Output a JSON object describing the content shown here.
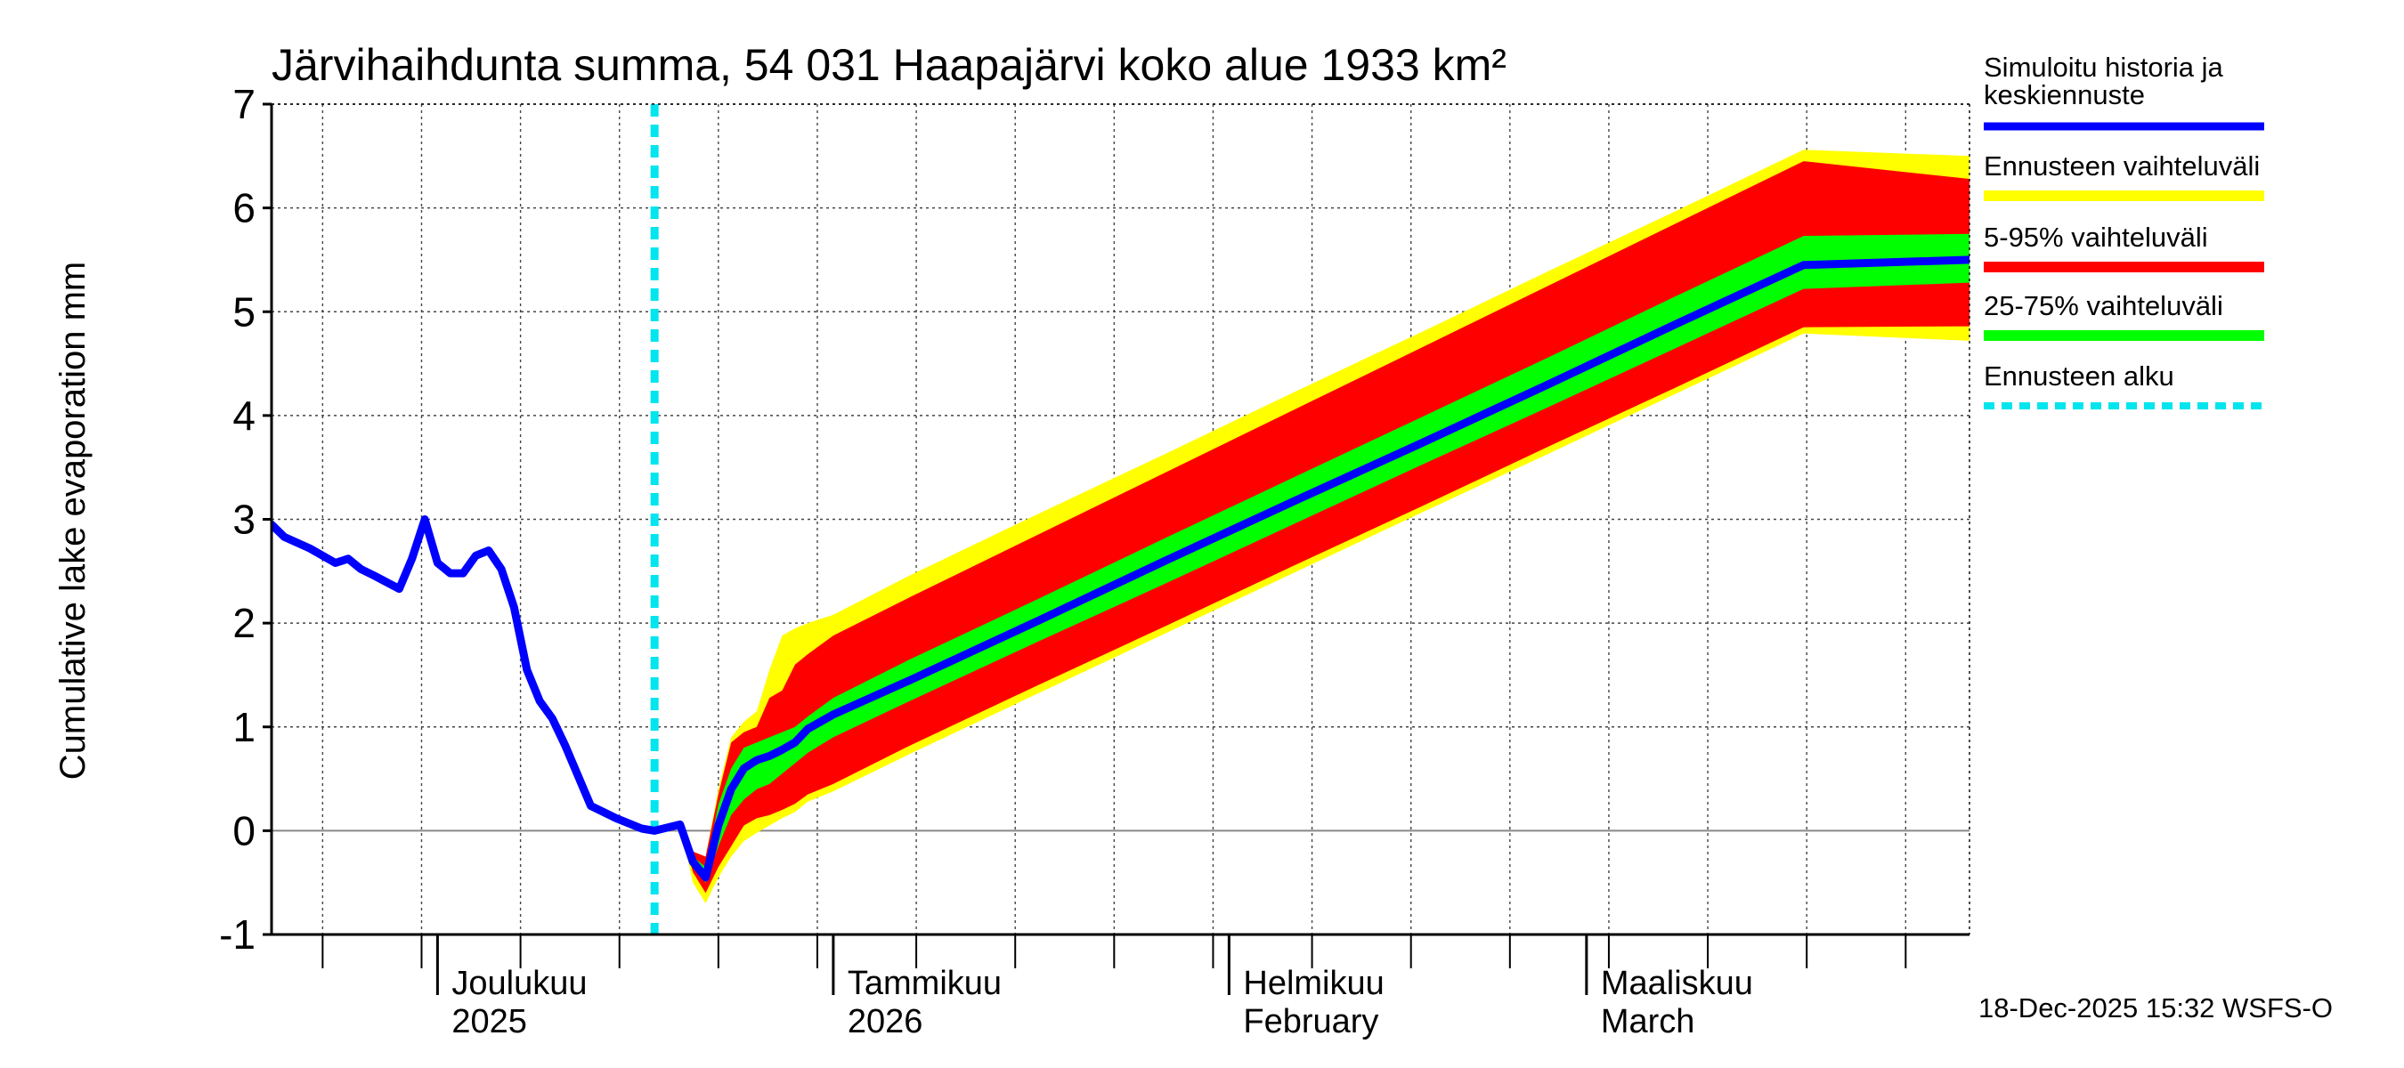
{
  "chart_data": {
    "type": "area",
    "title": "Järvihaihdunta summa, 54 031 Haapajärvi koko alue 1933 km²",
    "ylabel": "Cumulative lake evaporation   mm",
    "xlabel": "",
    "ylim": [
      -1,
      7
    ],
    "yticks": [
      "-1",
      "0",
      "1",
      "2",
      "3",
      "4",
      "5",
      "6",
      "7"
    ],
    "x_axis_unit": "days since 2025-11-18",
    "xlim": [
      0,
      133
    ],
    "month_ticks": [
      {
        "day": 13,
        "label1": "Joulukuu",
        "label2": "2025"
      },
      {
        "day": 44,
        "label1": "Tammikuu",
        "label2": "2026"
      },
      {
        "day": 75,
        "label1": "Helmikuu",
        "label2": "February"
      },
      {
        "day": 103,
        "label1": "Maaliskuu",
        "label2": "March"
      }
    ],
    "forecast_start_day": 30,
    "history": {
      "name": "Simuloitu historia ja keskiennuste",
      "color": "#0000ff",
      "x": [
        0,
        1,
        3,
        5,
        6,
        7,
        8,
        10,
        11,
        12,
        13,
        14,
        15,
        16,
        17,
        18,
        19,
        20,
        21,
        22,
        23,
        25,
        27,
        29,
        30
      ],
      "y": [
        2.95,
        2.83,
        2.72,
        2.58,
        2.62,
        2.52,
        2.46,
        2.33,
        2.62,
        3.0,
        2.58,
        2.48,
        2.48,
        2.65,
        2.7,
        2.52,
        2.15,
        1.55,
        1.25,
        1.08,
        0.82,
        0.24,
        0.12,
        0.02,
        0.0
      ]
    },
    "forecast_x": [
      30,
      31,
      32,
      33,
      34,
      35,
      36,
      37,
      38,
      39,
      40,
      41,
      42,
      44,
      50,
      60,
      70,
      80,
      90,
      100,
      110,
      120,
      133
    ],
    "median": [
      0.0,
      0.03,
      0.06,
      -0.3,
      -0.45,
      0.05,
      0.4,
      0.6,
      0.68,
      0.72,
      0.78,
      0.85,
      0.98,
      1.12,
      1.45,
      2.02,
      2.6,
      3.17,
      3.73,
      4.3,
      4.88,
      5.45,
      5.5
    ],
    "bands": [
      {
        "name": "Ennusteen vaihteluväli",
        "color": "#ffff00",
        "upper": [
          0.0,
          0.03,
          0.06,
          -0.2,
          -0.25,
          0.4,
          0.9,
          1.05,
          1.15,
          1.55,
          1.88,
          1.95,
          2.0,
          2.08,
          2.46,
          3.05,
          3.63,
          4.22,
          4.8,
          5.39,
          5.97,
          6.56,
          6.5
        ],
        "lower": [
          0.0,
          0.03,
          0.06,
          -0.5,
          -0.7,
          -0.45,
          -0.25,
          -0.1,
          -0.02,
          0.05,
          0.12,
          0.18,
          0.28,
          0.38,
          0.74,
          1.32,
          1.9,
          2.48,
          3.06,
          3.63,
          4.21,
          4.79,
          4.72
        ]
      },
      {
        "name": "5-95% vaihteluväli",
        "color": "#ff0000",
        "upper": [
          0.0,
          0.03,
          0.06,
          -0.2,
          -0.25,
          0.35,
          0.85,
          0.95,
          1.0,
          1.28,
          1.35,
          1.6,
          1.7,
          1.88,
          2.25,
          2.85,
          3.45,
          4.05,
          4.65,
          5.25,
          5.85,
          6.45,
          6.28
        ],
        "lower": [
          0.0,
          0.03,
          0.06,
          -0.4,
          -0.6,
          -0.35,
          -0.15,
          0.05,
          0.12,
          0.15,
          0.2,
          0.26,
          0.35,
          0.45,
          0.82,
          1.4,
          1.97,
          2.55,
          3.12,
          3.7,
          4.27,
          4.85,
          4.86
        ]
      },
      {
        "name": "25-75% vaihteluväli",
        "color": "#00ff00",
        "upper": [
          0.0,
          0.03,
          0.06,
          -0.25,
          -0.35,
          0.25,
          0.6,
          0.8,
          0.85,
          0.9,
          0.95,
          1.0,
          1.1,
          1.28,
          1.65,
          2.23,
          2.82,
          3.4,
          3.98,
          4.56,
          5.15,
          5.73,
          5.75
        ],
        "lower": [
          0.0,
          0.03,
          0.06,
          -0.35,
          -0.5,
          -0.15,
          0.15,
          0.3,
          0.4,
          0.45,
          0.55,
          0.65,
          0.75,
          0.9,
          1.25,
          1.82,
          2.38,
          2.95,
          3.52,
          4.08,
          4.65,
          5.22,
          5.28
        ]
      }
    ],
    "legend": [
      {
        "label": "Simuloitu historia ja keskiennuste",
        "color": "#0000ff",
        "style": "solid"
      },
      {
        "label": "Ennusteen vaihteluväli",
        "color": "#ffff00",
        "style": "solid"
      },
      {
        "label": "5-95% vaihteluväli",
        "color": "#ff0000",
        "style": "solid"
      },
      {
        "label": "25-75% vaihteluväli",
        "color": "#00ff00",
        "style": "solid"
      },
      {
        "label": "Ennusteen alku",
        "color": "#00e5ee",
        "style": "dotted"
      }
    ],
    "legend_labels": {
      "history_line1": "Simuloitu historia ja",
      "history_line2": "keskiennuste"
    },
    "footer": "18-Dec-2025 15:32 WSFS-O"
  }
}
